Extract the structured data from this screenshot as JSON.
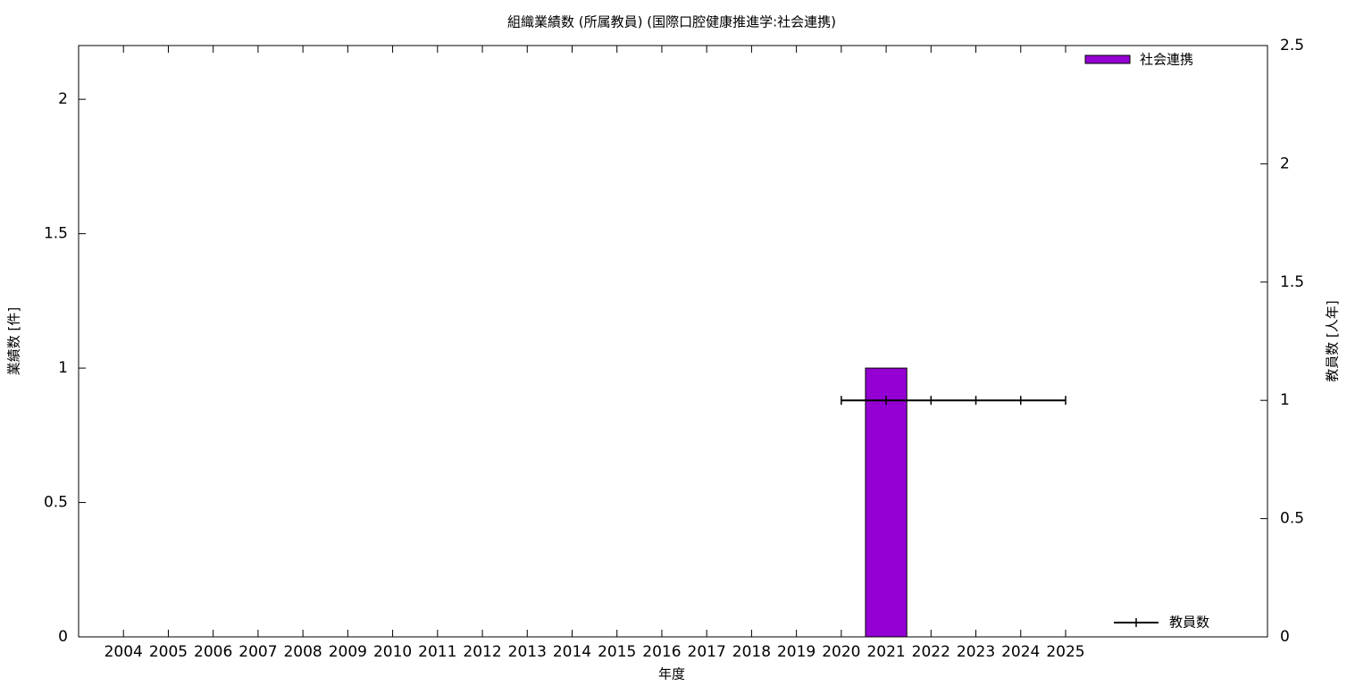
{
  "chart_data": {
    "type": "bar",
    "title": "組織業績数 (所属教員) (国際口腔健康推進学:社会連携)",
    "x_label": "年度",
    "y_label": "業績数 [件]",
    "y2_label": "教員数 [人年]",
    "categories": [
      "2004",
      "2005",
      "2006",
      "2007",
      "2008",
      "2009",
      "2010",
      "2011",
      "2012",
      "2013",
      "2014",
      "2015",
      "2016",
      "2017",
      "2018",
      "2019",
      "2020",
      "2021",
      "2022",
      "2023",
      "2024",
      "2025"
    ],
    "series": [
      {
        "name": "社会連携",
        "type": "bar",
        "color": "#9400d3",
        "values": [
          0,
          0,
          0,
          0,
          0,
          0,
          0,
          0,
          0,
          0,
          0,
          0,
          0,
          0,
          0,
          0,
          0,
          1,
          0,
          0,
          0,
          0
        ]
      },
      {
        "name": "教員数",
        "type": "line",
        "color": "#000000",
        "axis": "y2",
        "values": [
          null,
          null,
          null,
          null,
          null,
          null,
          null,
          null,
          null,
          null,
          null,
          null,
          null,
          null,
          null,
          null,
          1,
          1,
          1,
          1,
          1,
          1
        ]
      }
    ],
    "ylim": [
      0,
      2.2
    ],
    "yticks": [
      0,
      0.5,
      1,
      1.5,
      2
    ],
    "y2lim": [
      0,
      2.5
    ],
    "y2ticks": [
      0,
      0.5,
      1,
      1.5,
      2,
      2.5
    ]
  }
}
